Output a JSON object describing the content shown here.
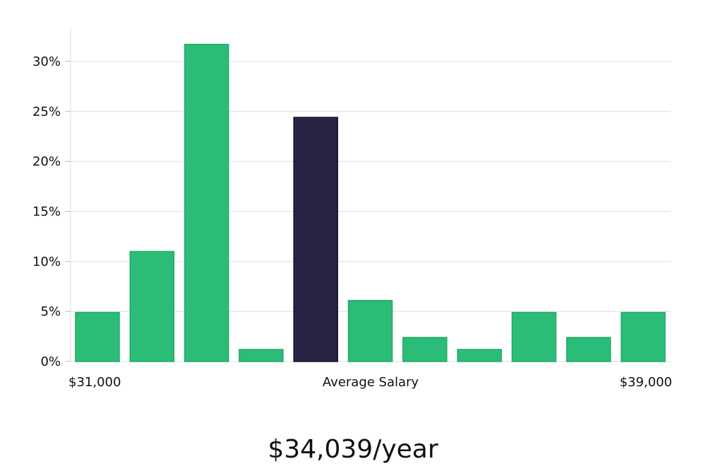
{
  "chart_data": {
    "type": "bar",
    "title": "",
    "xlabel": "Average Salary",
    "ylabel": "",
    "x_start_label": "$31,000",
    "x_end_label": "$39,000",
    "y_ticks": [
      "0%",
      "5%",
      "10%",
      "15%",
      "20%",
      "25%",
      "30%"
    ],
    "y_tick_values": [
      0,
      5,
      10,
      15,
      20,
      25,
      30
    ],
    "ylim": [
      0,
      33
    ],
    "values": [
      4.9,
      11.0,
      31.7,
      1.2,
      24.4,
      6.1,
      2.4,
      1.2,
      4.9,
      2.4,
      4.9
    ],
    "highlight_index": 4,
    "bar_color": "#2bbd77",
    "bar_stroke": "#22a866",
    "highlight_color": "#272444",
    "highlight_stroke": "#14122a",
    "grid": true
  },
  "salary_summary": "$34,039/year"
}
